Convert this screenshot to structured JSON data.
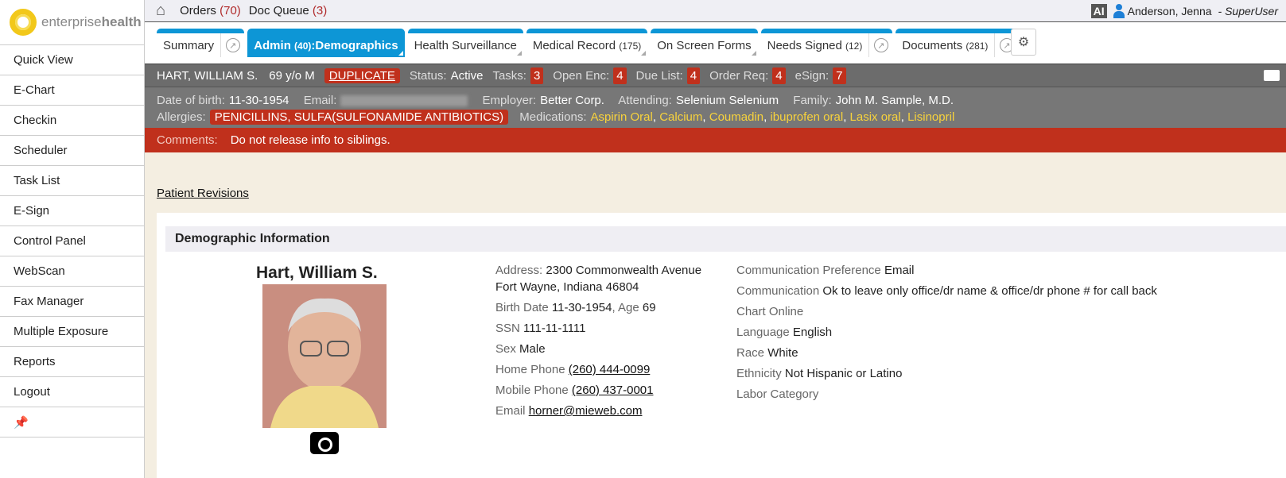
{
  "brand": {
    "name_light": "enterprise",
    "name_bold": "health"
  },
  "sidebar": {
    "items": [
      "Quick View",
      "E-Chart",
      "Checkin",
      "Scheduler",
      "Task List",
      "E-Sign",
      "Control Panel",
      "WebScan",
      "Fax Manager",
      "Multiple Exposure",
      "Reports",
      "Logout"
    ]
  },
  "topbar": {
    "orders": "Orders",
    "orders_count": "(70)",
    "doc_queue": "Doc Queue",
    "doc_queue_count": "(3)",
    "ai": "AI",
    "user": "Anderson, Jenna",
    "role": "- SuperUser"
  },
  "tabs": [
    {
      "label": "Summary"
    },
    {
      "label": "Admin ",
      "count": "(40)",
      "suffix": ":Demographics"
    },
    {
      "label": "Health Surveillance"
    },
    {
      "label": "Medical Record ",
      "count": "(175)"
    },
    {
      "label": "On Screen Forms"
    },
    {
      "label": "Needs Signed ",
      "count": "(12)"
    },
    {
      "label": "Documents ",
      "count": "(281)"
    }
  ],
  "patient_bar": {
    "name": "HART, WILLIAM S.",
    "age_sex": "69 y/o M",
    "duplicate": "DUPLICATE",
    "status_label": "Status:",
    "status": "Active",
    "tasks_label": "Tasks:",
    "tasks": "3",
    "open_enc_label": "Open Enc:",
    "open_enc": "4",
    "due_list_label": "Due List:",
    "due_list": "4",
    "order_req_label": "Order Req:",
    "order_req": "4",
    "esign_label": "eSign:",
    "esign": "7"
  },
  "info": {
    "dob_label": "Date of birth:",
    "dob": "11-30-1954",
    "email_label": "Email:",
    "employer_label": "Employer:",
    "employer": "Better Corp.",
    "attending_label": "Attending:",
    "attending": "Selenium Selenium",
    "family_label": "Family:",
    "family": "John M. Sample, M.D.",
    "allergies_label": "Allergies:",
    "allergies": "PENICILLINS, SULFA(SULFONAMIDE ANTIBIOTICS)",
    "medications_label": "Medications:",
    "medications": [
      "Aspirin Oral",
      "Calcium",
      "Coumadin",
      "ibuprofen oral",
      "Lasix oral",
      "Lisinopril"
    ]
  },
  "comments": {
    "label": "Comments:",
    "text": "Do not release info to siblings."
  },
  "content": {
    "revisions_link": "Patient Revisions",
    "section_title": "Demographic Information",
    "patient_name": "Hart, William S.",
    "address_label": "Address:",
    "address1": "2300 Commonwealth Avenue",
    "address2": "Fort Wayne, Indiana 46804",
    "birth_label": "Birth Date",
    "birth": "11-30-1954",
    "age_label": ", Age",
    "age": "69",
    "ssn_label": "SSN",
    "ssn": "111-11-1111",
    "sex_label": "Sex",
    "sex": "Male",
    "home_label": "Home Phone",
    "home": "(260) 444-0099",
    "mobile_label": "Mobile Phone",
    "mobile": "(260) 437-0001",
    "email_label": "Email",
    "email": "horner@mieweb.com",
    "comm_pref_label": "Communication Preference",
    "comm_pref": "Email",
    "comm_label": "Communication",
    "comm": "Ok to leave only office/dr name & office/dr phone # for call back",
    "chart_online_label": "Chart Online",
    "language_label": "Language",
    "language": "English",
    "race_label": "Race",
    "race": "White",
    "ethnicity_label": "Ethnicity",
    "ethnicity": "Not Hispanic or Latino",
    "labor_label": "Labor Category"
  }
}
